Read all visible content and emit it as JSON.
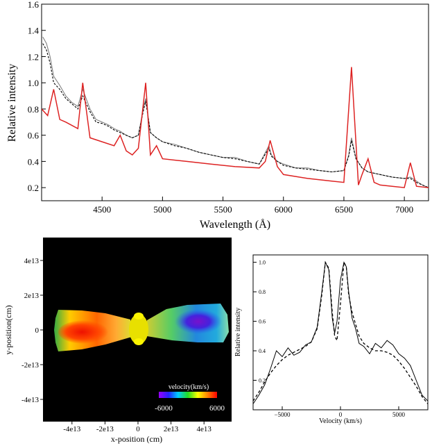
{
  "chart_data": [
    {
      "type": "line",
      "xlabel": "Wavelength (Å)",
      "ylabel": "Relative intensity",
      "xlim": [
        4000,
        7200
      ],
      "ylim": [
        0.1,
        1.6
      ],
      "x_ticks": [
        4500,
        5000,
        5500,
        6000,
        6500,
        7000
      ],
      "y_ticks": [
        0.2,
        0.4,
        0.6,
        0.8,
        1.0,
        1.2,
        1.4,
        1.6
      ],
      "x_tick_labels": [
        "4500",
        "5000",
        "5500",
        "6000",
        "6500",
        "7000"
      ],
      "y_tick_labels": [
        "0.2",
        "0.4",
        "0.6",
        "0.8",
        "1.0",
        "1.2",
        "1.4",
        "1.6"
      ],
      "colors": {
        "observed": "#808080",
        "smoothed": "#000000",
        "model": "#dd2222"
      },
      "series": [
        {
          "style": "gray-solid",
          "x": [
            4010,
            4040,
            4070,
            4100,
            4150,
            4200,
            4250,
            4300,
            4340,
            4400,
            4450,
            4500,
            4550,
            4600,
            4650,
            4700,
            4750,
            4800,
            4840,
            4861,
            4900,
            4950,
            5000,
            5100,
            5200,
            5300,
            5400,
            5500,
            5600,
            5700,
            5800,
            5880,
            5900,
            5950,
            6000,
            6100,
            6200,
            6300,
            6400,
            6500,
            6540,
            6563,
            6600,
            6650,
            6700,
            6800,
            6900,
            7000,
            7050,
            7100,
            7150,
            7200
          ],
          "y": [
            1.35,
            1.3,
            1.2,
            1.05,
            0.98,
            0.9,
            0.85,
            0.82,
            0.95,
            0.8,
            0.72,
            0.7,
            0.68,
            0.65,
            0.63,
            0.6,
            0.58,
            0.6,
            0.8,
            0.88,
            0.62,
            0.58,
            0.55,
            0.53,
            0.5,
            0.47,
            0.45,
            0.43,
            0.43,
            0.4,
            0.38,
            0.52,
            0.45,
            0.4,
            0.38,
            0.35,
            0.35,
            0.33,
            0.32,
            0.33,
            0.45,
            0.58,
            0.42,
            0.35,
            0.32,
            0.3,
            0.28,
            0.27,
            0.28,
            0.25,
            0.22,
            0.2
          ]
        },
        {
          "style": "black-dashed",
          "x": [
            4010,
            4040,
            4070,
            4100,
            4150,
            4200,
            4250,
            4300,
            4340,
            4400,
            4450,
            4500,
            4550,
            4600,
            4650,
            4700,
            4750,
            4800,
            4840,
            4861,
            4900,
            4950,
            5000,
            5100,
            5200,
            5300,
            5400,
            5500,
            5600,
            5700,
            5800,
            5880,
            5900,
            5950,
            6000,
            6100,
            6200,
            6300,
            6400,
            6500,
            6540,
            6563,
            6600,
            6650,
            6700,
            6800,
            6900,
            7000,
            7050,
            7100,
            7150,
            7200
          ],
          "y": [
            1.3,
            1.25,
            1.15,
            1.0,
            0.95,
            0.88,
            0.84,
            0.8,
            0.9,
            0.78,
            0.7,
            0.69,
            0.67,
            0.64,
            0.62,
            0.6,
            0.58,
            0.6,
            0.78,
            0.86,
            0.62,
            0.58,
            0.55,
            0.52,
            0.5,
            0.47,
            0.45,
            0.43,
            0.42,
            0.4,
            0.38,
            0.5,
            0.44,
            0.4,
            0.37,
            0.35,
            0.34,
            0.33,
            0.32,
            0.33,
            0.44,
            0.56,
            0.42,
            0.35,
            0.32,
            0.3,
            0.28,
            0.27,
            0.27,
            0.24,
            0.22,
            0.2
          ]
        },
        {
          "style": "red-solid",
          "x": [
            4000,
            4050,
            4100,
            4150,
            4200,
            4300,
            4340,
            4400,
            4500,
            4600,
            4650,
            4700,
            4750,
            4800,
            4861,
            4900,
            4950,
            5000,
            5200,
            5400,
            5600,
            5800,
            5850,
            5890,
            5950,
            6000,
            6200,
            6400,
            6500,
            6563,
            6620,
            6650,
            6700,
            6750,
            6800,
            6900,
            7000,
            7050,
            7100,
            7200
          ],
          "y": [
            0.8,
            0.75,
            0.95,
            0.72,
            0.7,
            0.65,
            1.0,
            0.58,
            0.55,
            0.52,
            0.6,
            0.48,
            0.45,
            0.5,
            1.0,
            0.45,
            0.52,
            0.42,
            0.4,
            0.38,
            0.36,
            0.35,
            0.4,
            0.56,
            0.36,
            0.3,
            0.27,
            0.25,
            0.24,
            1.12,
            0.22,
            0.3,
            0.42,
            0.24,
            0.22,
            0.21,
            0.2,
            0.39,
            0.21,
            0.2
          ]
        }
      ]
    },
    {
      "type": "heatmap",
      "xlabel": "x-position (cm)",
      "ylabel": "y-position(cm)",
      "x_tick_labels": [
        "-4e13",
        "-2e13",
        "0",
        "2e13",
        "4e13"
      ],
      "x_ticks": [
        -4,
        -2,
        0,
        2,
        4
      ],
      "y_tick_labels": [
        "4e13",
        "2e13",
        "0",
        "-2e13",
        "-4e13"
      ],
      "y_ticks": [
        4,
        2,
        0,
        -2,
        -4
      ],
      "colorbar": {
        "label": "velocity(km/s)",
        "min": -6000,
        "max": 6000,
        "min_label": "-6000",
        "max_label": "6000"
      },
      "background": "#000000"
    },
    {
      "type": "line",
      "xlabel": "Velocity (km/s)",
      "ylabel": "Relative intensity",
      "xlim": [
        -7500,
        7500
      ],
      "ylim": [
        0.0,
        1.05
      ],
      "x_ticks": [
        -5000,
        0,
        5000
      ],
      "x_tick_labels": [
        "−5000",
        "0",
        "5000"
      ],
      "y_ticks": [
        0.2,
        0.4,
        0.6,
        0.8,
        1.0
      ],
      "y_tick_labels": [
        "0.2",
        "0.4",
        "0.6",
        "0.8",
        "1.0"
      ],
      "series": [
        {
          "style": "solid",
          "x": [
            -7500,
            -7000,
            -6500,
            -6000,
            -5500,
            -5000,
            -4500,
            -4000,
            -3500,
            -3000,
            -2500,
            -2000,
            -1600,
            -1300,
            -1000,
            -700,
            -500,
            -300,
            0,
            300,
            500,
            700,
            1000,
            1300,
            1600,
            2000,
            2500,
            3000,
            3500,
            4000,
            4500,
            5000,
            5500,
            6000,
            6500,
            7000,
            7500
          ],
          "y": [
            0.04,
            0.1,
            0.17,
            0.28,
            0.4,
            0.36,
            0.42,
            0.37,
            0.39,
            0.44,
            0.46,
            0.56,
            0.8,
            1.0,
            0.95,
            0.62,
            0.52,
            0.6,
            0.88,
            1.0,
            0.97,
            0.8,
            0.62,
            0.55,
            0.45,
            0.43,
            0.38,
            0.45,
            0.42,
            0.47,
            0.44,
            0.38,
            0.35,
            0.3,
            0.2,
            0.1,
            0.06
          ]
        },
        {
          "style": "dashed",
          "x": [
            -7500,
            -7000,
            -6500,
            -6000,
            -5500,
            -5000,
            -4500,
            -4000,
            -3500,
            -3000,
            -2500,
            -2000,
            -1600,
            -1300,
            -1000,
            -700,
            -500,
            -300,
            0,
            300,
            500,
            700,
            1000,
            1300,
            1600,
            2000,
            2500,
            3000,
            3500,
            4000,
            4500,
            5000,
            5500,
            6000,
            6500,
            7000,
            7500
          ],
          "y": [
            0.06,
            0.12,
            0.19,
            0.25,
            0.3,
            0.34,
            0.37,
            0.39,
            0.41,
            0.43,
            0.46,
            0.55,
            0.78,
            1.0,
            0.96,
            0.66,
            0.5,
            0.47,
            0.72,
            1.0,
            0.97,
            0.78,
            0.66,
            0.58,
            0.5,
            0.45,
            0.42,
            0.4,
            0.4,
            0.39,
            0.37,
            0.33,
            0.28,
            0.22,
            0.16,
            0.09,
            0.04
          ]
        }
      ]
    }
  ]
}
